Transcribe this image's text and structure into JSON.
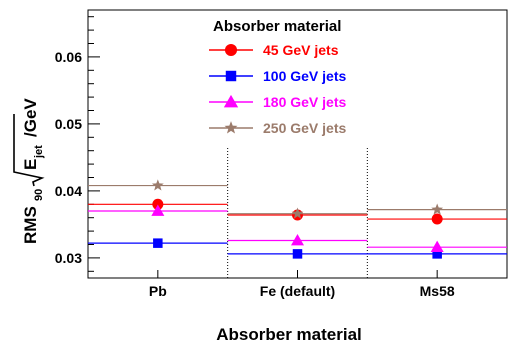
{
  "chart_data": {
    "type": "scatter",
    "categories": [
      "Pb",
      "Fe (default)",
      "Ms58"
    ],
    "xlabel": "Absorber material",
    "ylabel": {
      "main": "RMS",
      "sub90": "90",
      "E": "E",
      "subjet": "jet",
      "unit": "/GeV"
    },
    "ylim": [
      0.027,
      0.067
    ],
    "yticks": [
      0.03,
      0.04,
      0.05,
      0.06
    ],
    "ytick_labels": [
      "0.03",
      "0.04",
      "0.05",
      "0.06"
    ],
    "grid": false,
    "legend": {
      "title": "Absorber material",
      "position": "top-center"
    },
    "series": [
      {
        "name": "45 GeV jets",
        "color": "#ff0000",
        "marker": "circle",
        "values": [
          0.038,
          0.0364,
          0.0358
        ]
      },
      {
        "name": "100 GeV jets",
        "color": "#0000ff",
        "marker": "square",
        "values": [
          0.0322,
          0.0306,
          0.0306
        ]
      },
      {
        "name": "180 GeV jets",
        "color": "#ff00ff",
        "marker": "triangle",
        "values": [
          0.037,
          0.0326,
          0.0316
        ]
      },
      {
        "name": "250 GeV jets",
        "color": "#9b7b6b",
        "marker": "star",
        "values": [
          0.0408,
          0.0366,
          0.0372
        ]
      }
    ]
  }
}
